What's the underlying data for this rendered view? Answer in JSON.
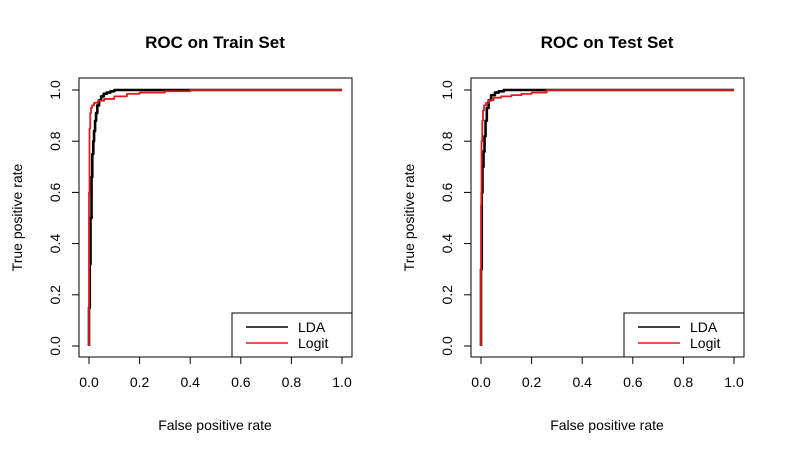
{
  "chart_data": [
    {
      "type": "line",
      "title": "ROC on Train Set",
      "xlabel": "False positive rate",
      "ylabel": "True positive rate",
      "xlim": [
        0,
        1
      ],
      "ylim": [
        0,
        1
      ],
      "x_ticks": [
        "0.0",
        "0.2",
        "0.4",
        "0.6",
        "0.8",
        "1.0"
      ],
      "y_ticks": [
        "0.0",
        "0.2",
        "0.4",
        "0.6",
        "0.8",
        "1.0"
      ],
      "grid": false,
      "legend": "bottom-right",
      "series": [
        {
          "name": "LDA",
          "color": "#000000",
          "x": [
            0,
            0.003,
            0.006,
            0.01,
            0.013,
            0.017,
            0.02,
            0.024,
            0.028,
            0.033,
            0.04,
            0.048,
            0.058,
            0.07,
            0.085,
            0.1,
            0.13,
            0.2,
            1.0
          ],
          "y": [
            0,
            0.15,
            0.32,
            0.5,
            0.66,
            0.75,
            0.8,
            0.84,
            0.88,
            0.91,
            0.94,
            0.96,
            0.975,
            0.985,
            0.99,
            0.995,
            1.0,
            1.0,
            1.0
          ]
        },
        {
          "name": "Logit",
          "color": "#e31a1c",
          "x": [
            0,
            0.002,
            0.005,
            0.008,
            0.012,
            0.02,
            0.035,
            0.06,
            0.1,
            0.15,
            0.2,
            0.3,
            0.4,
            0.55,
            1.0
          ],
          "y": [
            0,
            0.6,
            0.85,
            0.91,
            0.93,
            0.94,
            0.95,
            0.958,
            0.965,
            0.975,
            0.985,
            0.99,
            0.995,
            1.0,
            1.0
          ]
        }
      ]
    },
    {
      "type": "line",
      "title": "ROC on Test Set",
      "xlabel": "False positive rate",
      "ylabel": "True positive rate",
      "xlim": [
        0,
        1
      ],
      "ylim": [
        0,
        1
      ],
      "x_ticks": [
        "0.0",
        "0.2",
        "0.4",
        "0.6",
        "0.8",
        "1.0"
      ],
      "y_ticks": [
        "0.0",
        "0.2",
        "0.4",
        "0.6",
        "0.8",
        "1.0"
      ],
      "grid": false,
      "legend": "bottom-right",
      "series": [
        {
          "name": "LDA",
          "color": "#000000",
          "x": [
            0,
            0.003,
            0.006,
            0.01,
            0.014,
            0.018,
            0.023,
            0.03,
            0.04,
            0.055,
            0.07,
            0.09,
            0.12,
            0.2,
            1.0
          ],
          "y": [
            0,
            0.3,
            0.6,
            0.7,
            0.76,
            0.82,
            0.88,
            0.93,
            0.96,
            0.98,
            0.99,
            0.995,
            1.0,
            1.0,
            1.0
          ]
        },
        {
          "name": "Logit",
          "color": "#e31a1c",
          "x": [
            0,
            0.002,
            0.005,
            0.008,
            0.012,
            0.02,
            0.03,
            0.05,
            0.08,
            0.12,
            0.16,
            0.2,
            0.26,
            0.26,
            1.0
          ],
          "y": [
            0,
            0.55,
            0.8,
            0.88,
            0.92,
            0.94,
            0.95,
            0.96,
            0.97,
            0.975,
            0.98,
            0.985,
            0.99,
            1.0,
            1.0
          ]
        }
      ]
    }
  ]
}
